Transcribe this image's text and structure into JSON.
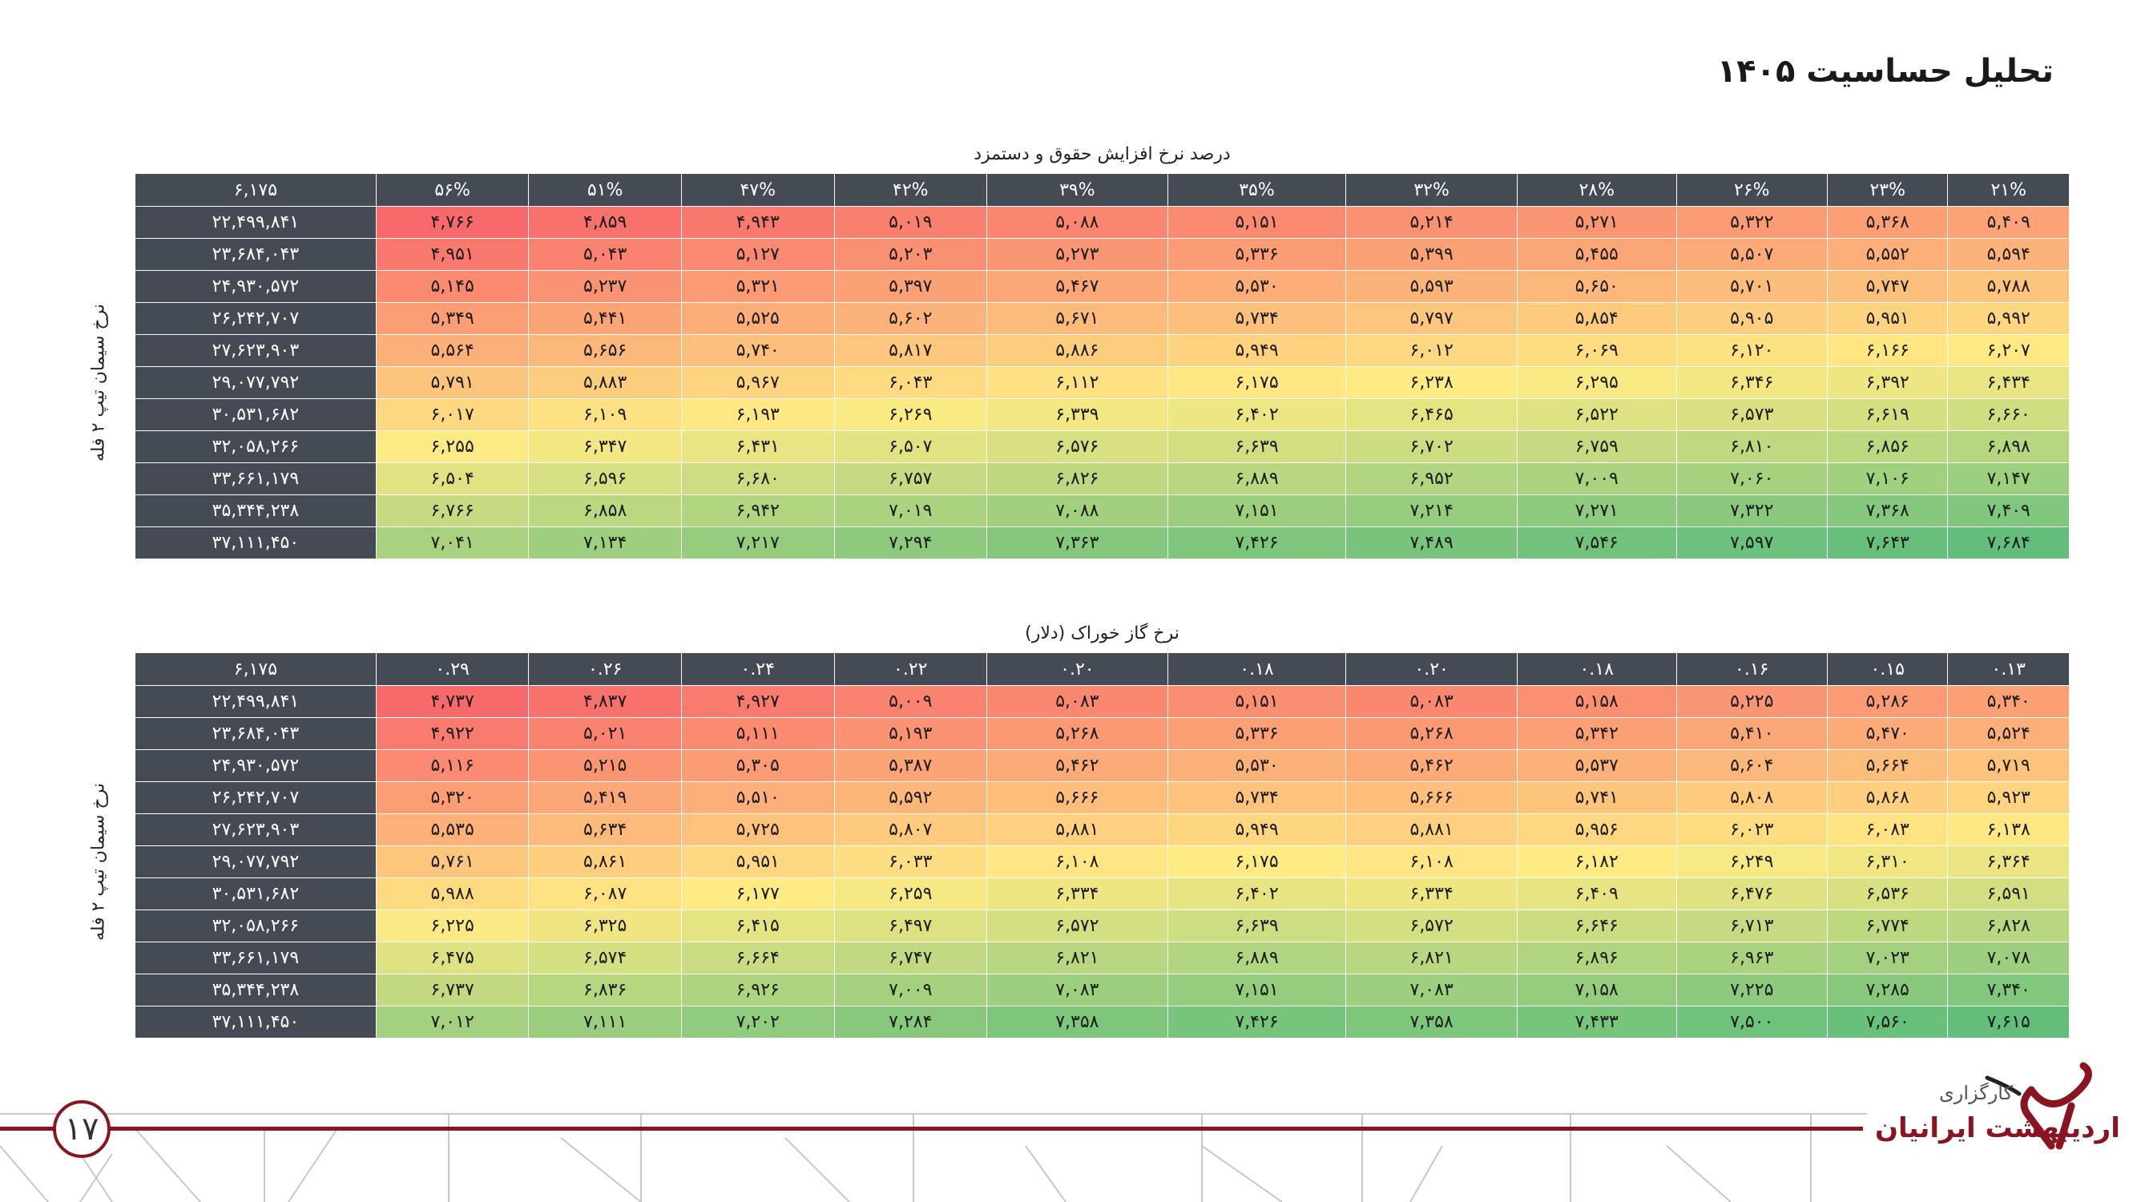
{
  "title": "تحلیل حساسیت  ۱۴۰۵",
  "page_number": "۱۷",
  "logo": {
    "line1": "کارگزاری",
    "line2": "اردیبهشت ایرانیان"
  },
  "colors": {
    "header_bg": "#454b55",
    "low": "#f8696b",
    "mid": "#ffeb84",
    "high": "#63be7b",
    "accent": "#8a1520"
  },
  "tables": [
    {
      "caption": "درصد نرخ افزایش حقوق و دستمزد",
      "row_axis_label": "نرخ سیمان تیپ ۲ فله",
      "corner": "۶,۱۷۵",
      "columns": [
        "۵۶%",
        "۵۱%",
        "۴۷%",
        "۴۲%",
        "۳۹%",
        "۳۵%",
        "۳۲%",
        "۲۸%",
        "۲۶%",
        "۲۳%",
        "۲۱%"
      ],
      "rows": [
        {
          "label": "۲۲,۴۹۹,۸۴۱",
          "values": [
            "۴,۷۶۶",
            "۴,۸۵۹",
            "۴,۹۴۳",
            "۵,۰۱۹",
            "۵,۰۸۸",
            "۵,۱۵۱",
            "۵,۲۱۴",
            "۵,۲۷۱",
            "۵,۳۲۲",
            "۵,۳۶۸",
            "۵,۴۰۹"
          ]
        },
        {
          "label": "۲۳,۶۸۴,۰۴۳",
          "values": [
            "۴,۹۵۱",
            "۵,۰۴۳",
            "۵,۱۲۷",
            "۵,۲۰۳",
            "۵,۲۷۳",
            "۵,۳۳۶",
            "۵,۳۹۹",
            "۵,۴۵۵",
            "۵,۵۰۷",
            "۵,۵۵۲",
            "۵,۵۹۴"
          ]
        },
        {
          "label": "۲۴,۹۳۰,۵۷۲",
          "values": [
            "۵,۱۴۵",
            "۵,۲۳۷",
            "۵,۳۲۱",
            "۵,۳۹۷",
            "۵,۴۶۷",
            "۵,۵۳۰",
            "۵,۵۹۳",
            "۵,۶۵۰",
            "۵,۷۰۱",
            "۵,۷۴۷",
            "۵,۷۸۸"
          ]
        },
        {
          "label": "۲۶,۲۴۲,۷۰۷",
          "values": [
            "۵,۳۴۹",
            "۵,۴۴۱",
            "۵,۵۲۵",
            "۵,۶۰۲",
            "۵,۶۷۱",
            "۵,۷۳۴",
            "۵,۷۹۷",
            "۵,۸۵۴",
            "۵,۹۰۵",
            "۵,۹۵۱",
            "۵,۹۹۲"
          ]
        },
        {
          "label": "۲۷,۶۲۳,۹۰۳",
          "values": [
            "۵,۵۶۴",
            "۵,۶۵۶",
            "۵,۷۴۰",
            "۵,۸۱۷",
            "۵,۸۸۶",
            "۵,۹۴۹",
            "۶,۰۱۲",
            "۶,۰۶۹",
            "۶,۱۲۰",
            "۶,۱۶۶",
            "۶,۲۰۷"
          ]
        },
        {
          "label": "۲۹,۰۷۷,۷۹۲",
          "values": [
            "۵,۷۹۱",
            "۵,۸۸۳",
            "۵,۹۶۷",
            "۶,۰۴۳",
            "۶,۱۱۲",
            "۶,۱۷۵",
            "۶,۲۳۸",
            "۶,۲۹۵",
            "۶,۳۴۶",
            "۶,۳۹۲",
            "۶,۴۳۴"
          ]
        },
        {
          "label": "۳۰,۵۳۱,۶۸۲",
          "values": [
            "۶,۰۱۷",
            "۶,۱۰۹",
            "۶,۱۹۳",
            "۶,۲۶۹",
            "۶,۳۳۹",
            "۶,۴۰۲",
            "۶,۴۶۵",
            "۶,۵۲۲",
            "۶,۵۷۳",
            "۶,۶۱۹",
            "۶,۶۶۰"
          ]
        },
        {
          "label": "۳۲,۰۵۸,۲۶۶",
          "values": [
            "۶,۲۵۵",
            "۶,۳۴۷",
            "۶,۴۳۱",
            "۶,۵۰۷",
            "۶,۵۷۶",
            "۶,۶۳۹",
            "۶,۷۰۲",
            "۶,۷۵۹",
            "۶,۸۱۰",
            "۶,۸۵۶",
            "۶,۸۹۸"
          ]
        },
        {
          "label": "۳۳,۶۶۱,۱۷۹",
          "values": [
            "۶,۵۰۴",
            "۶,۵۹۶",
            "۶,۶۸۰",
            "۶,۷۵۷",
            "۶,۸۲۶",
            "۶,۸۸۹",
            "۶,۹۵۲",
            "۷,۰۰۹",
            "۷,۰۶۰",
            "۷,۱۰۶",
            "۷,۱۴۷"
          ]
        },
        {
          "label": "۳۵,۳۴۴,۲۳۸",
          "values": [
            "۶,۷۶۶",
            "۶,۸۵۸",
            "۶,۹۴۲",
            "۷,۰۱۹",
            "۷,۰۸۸",
            "۷,۱۵۱",
            "۷,۲۱۴",
            "۷,۲۷۱",
            "۷,۳۲۲",
            "۷,۳۶۸",
            "۷,۴۰۹"
          ]
        },
        {
          "label": "۳۷,۱۱۱,۴۵۰",
          "values": [
            "۷,۰۴۱",
            "۷,۱۳۴",
            "۷,۲۱۷",
            "۷,۲۹۴",
            "۷,۳۶۳",
            "۷,۴۲۶",
            "۷,۴۸۹",
            "۷,۵۴۶",
            "۷,۵۹۷",
            "۷,۶۴۳",
            "۷,۶۸۴"
          ]
        }
      ]
    },
    {
      "caption": "نرخ گاز خوراک (دلار)",
      "row_axis_label": "نرخ سیمان تیپ ۲ فله",
      "corner": "۶,۱۷۵",
      "columns": [
        "۰.۲۹",
        "۰.۲۶",
        "۰.۲۴",
        "۰.۲۲",
        "۰.۲۰",
        "۰.۱۸",
        "۰.۲۰",
        "۰.۱۸",
        "۰.۱۶",
        "۰.۱۵",
        "۰.۱۳"
      ],
      "rows": [
        {
          "label": "۲۲,۴۹۹,۸۴۱",
          "values": [
            "۴,۷۳۷",
            "۴,۸۳۷",
            "۴,۹۲۷",
            "۵,۰۰۹",
            "۵,۰۸۳",
            "۵,۱۵۱",
            "۵,۰۸۳",
            "۵,۱۵۸",
            "۵,۲۲۵",
            "۵,۲۸۶",
            "۵,۳۴۰"
          ]
        },
        {
          "label": "۲۳,۶۸۴,۰۴۳",
          "values": [
            "۴,۹۲۲",
            "۵,۰۲۱",
            "۵,۱۱۱",
            "۵,۱۹۳",
            "۵,۲۶۸",
            "۵,۳۳۶",
            "۵,۲۶۸",
            "۵,۳۴۲",
            "۵,۴۱۰",
            "۵,۴۷۰",
            "۵,۵۲۴"
          ]
        },
        {
          "label": "۲۴,۹۳۰,۵۷۲",
          "values": [
            "۵,۱۱۶",
            "۵,۲۱۵",
            "۵,۳۰۵",
            "۵,۳۸۷",
            "۵,۴۶۲",
            "۵,۵۳۰",
            "۵,۴۶۲",
            "۵,۵۳۷",
            "۵,۶۰۴",
            "۵,۶۶۴",
            "۵,۷۱۹"
          ]
        },
        {
          "label": "۲۶,۲۴۲,۷۰۷",
          "values": [
            "۵,۳۲۰",
            "۵,۴۱۹",
            "۵,۵۱۰",
            "۵,۵۹۲",
            "۵,۶۶۶",
            "۵,۷۳۴",
            "۵,۶۶۶",
            "۵,۷۴۱",
            "۵,۸۰۸",
            "۵,۸۶۸",
            "۵,۹۲۳"
          ]
        },
        {
          "label": "۲۷,۶۲۳,۹۰۳",
          "values": [
            "۵,۵۳۵",
            "۵,۶۳۴",
            "۵,۷۲۵",
            "۵,۸۰۷",
            "۵,۸۸۱",
            "۵,۹۴۹",
            "۵,۸۸۱",
            "۵,۹۵۶",
            "۶,۰۲۳",
            "۶,۰۸۳",
            "۶,۱۳۸"
          ]
        },
        {
          "label": "۲۹,۰۷۷,۷۹۲",
          "values": [
            "۵,۷۶۱",
            "۵,۸۶۱",
            "۵,۹۵۱",
            "۶,۰۳۳",
            "۶,۱۰۸",
            "۶,۱۷۵",
            "۶,۱۰۸",
            "۶,۱۸۲",
            "۶,۲۴۹",
            "۶,۳۱۰",
            "۶,۳۶۴"
          ]
        },
        {
          "label": "۳۰,۵۳۱,۶۸۲",
          "values": [
            "۵,۹۸۸",
            "۶,۰۸۷",
            "۶,۱۷۷",
            "۶,۲۵۹",
            "۶,۳۳۴",
            "۶,۴۰۲",
            "۶,۳۳۴",
            "۶,۴۰۹",
            "۶,۴۷۶",
            "۶,۵۳۶",
            "۶,۵۹۱"
          ]
        },
        {
          "label": "۳۲,۰۵۸,۲۶۶",
          "values": [
            "۶,۲۲۵",
            "۶,۳۲۵",
            "۶,۴۱۵",
            "۶,۴۹۷",
            "۶,۵۷۲",
            "۶,۶۳۹",
            "۶,۵۷۲",
            "۶,۶۴۶",
            "۶,۷۱۳",
            "۶,۷۷۴",
            "۶,۸۲۸"
          ]
        },
        {
          "label": "۳۳,۶۶۱,۱۷۹",
          "values": [
            "۶,۴۷۵",
            "۶,۵۷۴",
            "۶,۶۶۴",
            "۶,۷۴۷",
            "۶,۸۲۱",
            "۶,۸۸۹",
            "۶,۸۲۱",
            "۶,۸۹۶",
            "۶,۹۶۳",
            "۷,۰۲۳",
            "۷,۰۷۸"
          ]
        },
        {
          "label": "۳۵,۳۴۴,۲۳۸",
          "values": [
            "۶,۷۳۷",
            "۶,۸۳۶",
            "۶,۹۲۶",
            "۷,۰۰۹",
            "۷,۰۸۳",
            "۷,۱۵۱",
            "۷,۰۸۳",
            "۷,۱۵۸",
            "۷,۲۲۵",
            "۷,۲۸۵",
            "۷,۳۴۰"
          ]
        },
        {
          "label": "۳۷,۱۱۱,۴۵۰",
          "values": [
            "۷,۰۱۲",
            "۷,۱۱۱",
            "۷,۲۰۲",
            "۷,۲۸۴",
            "۷,۳۵۸",
            "۷,۴۲۶",
            "۷,۳۵۸",
            "۷,۴۳۳",
            "۷,۵۰۰",
            "۷,۵۶۰",
            "۷,۶۱۵"
          ]
        }
      ]
    }
  ]
}
